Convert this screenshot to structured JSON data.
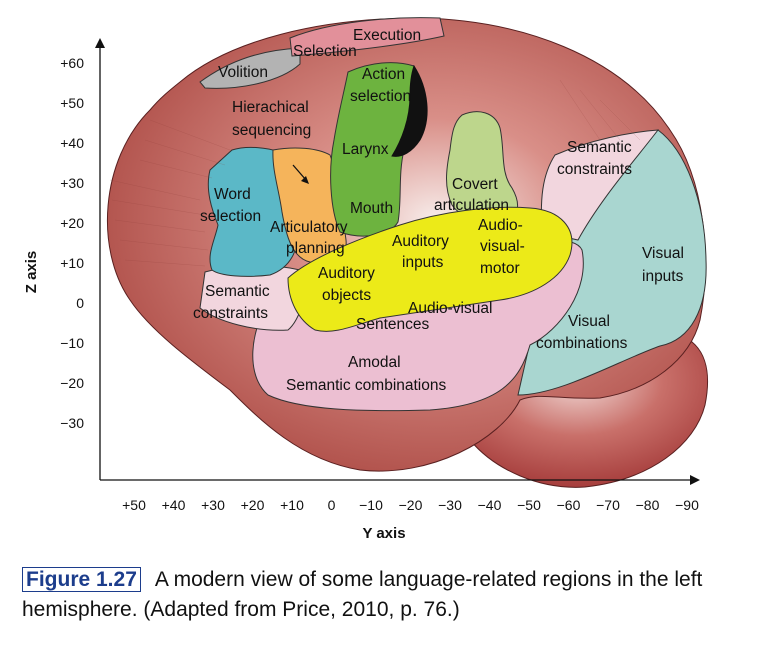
{
  "diagram": {
    "y_axis_ticks": [
      "+60",
      "+50",
      "+40",
      "+30",
      "+20",
      "+10",
      "0",
      "−10",
      "−20",
      "−30"
    ],
    "x_axis_ticks": [
      "+50",
      "+40",
      "+30",
      "+20",
      "+10",
      "0",
      "−10",
      "−20",
      "−30",
      "−40",
      "−50",
      "−60",
      "−70",
      "−80",
      "−90"
    ],
    "z_axis_label": "Z axis",
    "y_axis_label": "Y axis",
    "regions": {
      "execution": "Execution",
      "selection": "Selection",
      "volition": "Volition",
      "action_selection": [
        "Action",
        "selection"
      ],
      "hierachical_sequencing": [
        "Hierachical",
        "sequencing"
      ],
      "larynx": "Larynx",
      "semantic_constraints_right": [
        "Semantic",
        "constraints"
      ],
      "word_selection": [
        "Word",
        "selection"
      ],
      "mouth": "Mouth",
      "covert_articulation": [
        "Covert",
        "articulation"
      ],
      "articulatory_planning": [
        "Articulatory",
        "planning"
      ],
      "auditory_inputs": [
        "Auditory",
        "inputs"
      ],
      "audio_visual_motor": [
        "Audio-",
        "visual-",
        "motor"
      ],
      "visual_inputs": [
        "Visual",
        "inputs"
      ],
      "auditory_objects": [
        "Auditory",
        "objects"
      ],
      "semantic_constraints_left": [
        "Semantic",
        "constraints"
      ],
      "audio_visual_sentences": [
        "Audio-visual",
        "Sentences"
      ],
      "visual_combinations": [
        "Visual",
        "combinations"
      ],
      "amodal_semantic_combinations": [
        "Amodal",
        "Semantic combinations"
      ]
    }
  },
  "caption": {
    "label": "Figure 1.27",
    "text": "A modern view of some language-related regions in the left hemisphere. (Adapted from Price, 2010, p. 76.)"
  },
  "colors": {
    "brain_red": "#b5524c",
    "cerebellum": "#a53838",
    "teal": "#a9d6d0",
    "pink": "#ecbfd2",
    "blue": "#5bb8c7",
    "orange": "#f5b45b",
    "green": "#6db33f",
    "light_green": "#bdd68c",
    "yellow": "#ecea18",
    "grey": "#b3b3b3",
    "figure_label": "#1c3d8c"
  }
}
